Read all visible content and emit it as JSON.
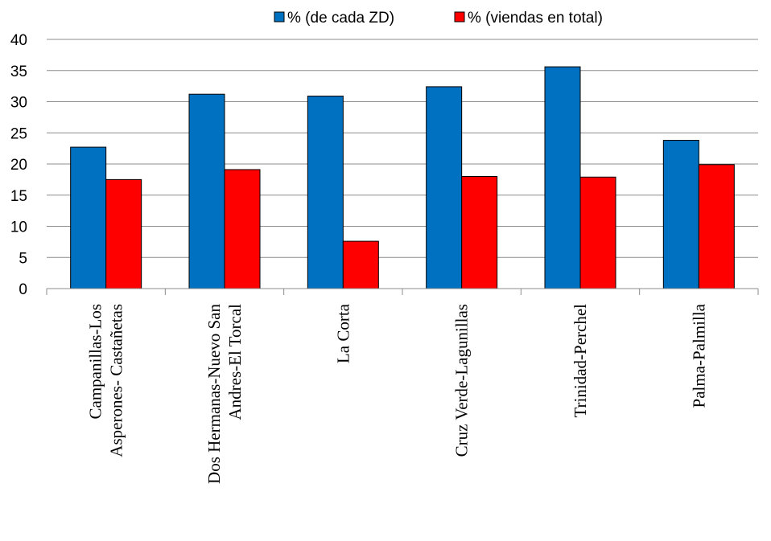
{
  "chart_data": {
    "type": "bar",
    "title": "",
    "xlabel": "",
    "ylabel": "",
    "ylim": [
      0,
      40
    ],
    "yticks": [
      0,
      5,
      10,
      15,
      20,
      25,
      30,
      35,
      40
    ],
    "grid": true,
    "legend_position": "top",
    "categories": [
      [
        "Campanillas-Los",
        "Asperones- Castañetas"
      ],
      [
        "Dos Hermanas-Nuevo San",
        "Andres-El Torcal"
      ],
      [
        "La Corta"
      ],
      [
        "Cruz Verde-Lagunillas"
      ],
      [
        "Trinidad-Perchel"
      ],
      [
        "Palma-Palmilla"
      ]
    ],
    "series": [
      {
        "name": "% (de cada ZD)",
        "color": "#0070C0",
        "values": [
          22.7,
          31.2,
          30.9,
          32.4,
          35.6,
          23.8
        ]
      },
      {
        "name": "% (viendas en total)",
        "color": "#FF0000",
        "values": [
          17.5,
          19.1,
          7.6,
          18.0,
          17.9,
          19.9
        ]
      }
    ]
  }
}
